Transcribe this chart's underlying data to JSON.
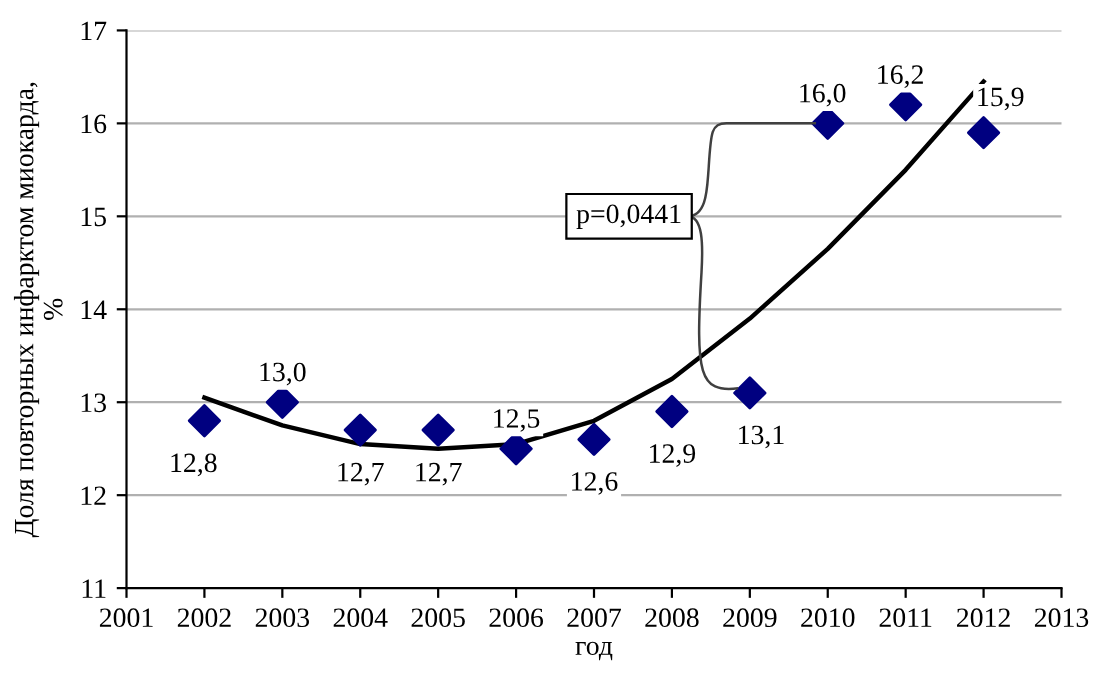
{
  "chart_data": {
    "type": "scatter",
    "xlabel": "год",
    "ylabel": "Доля повторных инфарктом миокарда,\n%",
    "xlim": [
      2001,
      2013
    ],
    "xticks": [
      2001,
      2002,
      2003,
      2004,
      2005,
      2006,
      2007,
      2008,
      2009,
      2010,
      2011,
      2012,
      2013
    ],
    "ylim": [
      11,
      17
    ],
    "yticks": [
      11,
      12,
      13,
      14,
      15,
      16,
      17
    ],
    "grid": "y",
    "series": [
      {
        "color": "#000080",
        "marker": "diamond",
        "x": [
          2002,
          2003,
          2004,
          2005,
          2006,
          2007,
          2008,
          2009,
          2010,
          2011,
          2012
        ],
        "values": [
          12.8,
          13.0,
          12.7,
          12.7,
          12.5,
          12.6,
          12.9,
          13.1,
          16.0,
          16.2,
          15.9
        ],
        "value_labels": [
          "12,8",
          "13,0",
          "12,7",
          "12,7",
          "12,5",
          "12,6",
          "12,9",
          "13,1",
          "16,0",
          "16,2",
          "15,9"
        ]
      },
      {
        "type": "line",
        "color": "#000000",
        "x": [
          2002,
          2003,
          2004,
          2005,
          2006,
          2007,
          2008,
          2009,
          2010,
          2011,
          2012
        ],
        "values": [
          13.05,
          12.75,
          12.55,
          12.5,
          12.55,
          12.8,
          13.25,
          13.9,
          14.65,
          15.5,
          16.45
        ]
      }
    ],
    "annotations": [
      {
        "text": "p=0,0441",
        "x": 2010,
        "y": 16.0
      }
    ]
  }
}
